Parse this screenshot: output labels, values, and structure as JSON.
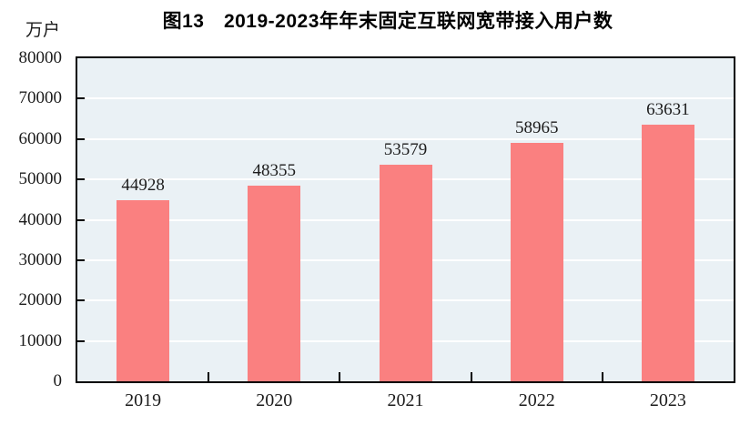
{
  "figure": {
    "title": "图13　2019-2023年年末固定互联网宽带接入用户数",
    "unit_label": "万户"
  },
  "colors": {
    "bar": "#fa8080",
    "plot_background": "#eaf1f5",
    "gridline": "#ffffff",
    "axis": "#000000",
    "label_text": "#1c1c1c"
  },
  "chart_data": {
    "type": "bar",
    "title": "图13　2019-2023年年末固定互联网宽带接入用户数",
    "categories": [
      "2019",
      "2020",
      "2021",
      "2022",
      "2023"
    ],
    "values": [
      44928,
      48355,
      53579,
      58965,
      63631
    ],
    "bar_labels": [
      "44928",
      "48355",
      "53579",
      "58965",
      "63631"
    ],
    "xlabel": "",
    "ylabel": "万户",
    "ylim": [
      0,
      80000
    ],
    "ytick_step": 10000,
    "yticks": [
      0,
      10000,
      20000,
      30000,
      40000,
      50000,
      60000,
      70000,
      80000
    ],
    "grid": "horizontal",
    "legend": "none"
  }
}
